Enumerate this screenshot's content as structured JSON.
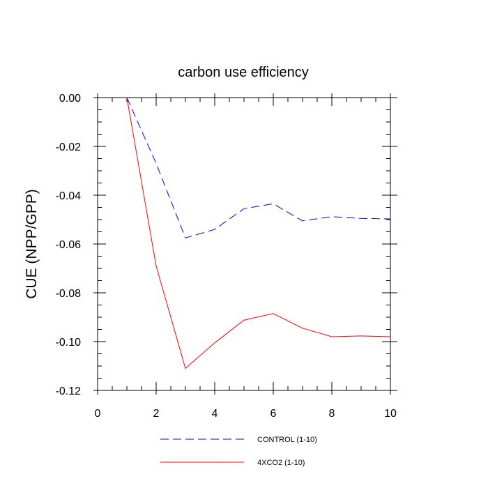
{
  "chart_data": {
    "type": "line",
    "title": "carbon use efficiency",
    "xlabel": "",
    "ylabel": "CUE  (NPP/GPP)",
    "xlim": [
      0,
      10
    ],
    "ylim": [
      -0.12,
      0.0
    ],
    "xticks": [
      0,
      2,
      4,
      6,
      8,
      10
    ],
    "xtick_labels": [
      "0",
      "2",
      "4",
      "6",
      "8",
      "10"
    ],
    "yticks": [
      0.0,
      -0.02,
      -0.04,
      -0.06,
      -0.08,
      -0.1,
      -0.12
    ],
    "ytick_labels": [
      "0.00",
      "-0.02",
      "-0.04",
      "-0.06",
      "-0.08",
      "-0.10",
      "-0.12"
    ],
    "grid": false,
    "legend_position": "bottom",
    "series": [
      {
        "name": "CONTROL (1-10)",
        "color": "#0000ff",
        "style": "dashed",
        "x": [
          1,
          2,
          3,
          4,
          5,
          6,
          7,
          8,
          9,
          10
        ],
        "y": [
          0.0,
          -0.027,
          -0.0575,
          -0.054,
          -0.0455,
          -0.0435,
          -0.0505,
          -0.0488,
          -0.0495,
          -0.0497
        ]
      },
      {
        "name": "4XCO2 (1-10)",
        "color": "#ff0000",
        "style": "solid",
        "x": [
          1,
          2,
          3,
          4,
          5,
          6,
          7,
          8,
          9,
          10
        ],
        "y": [
          0.0,
          -0.069,
          -0.111,
          -0.1005,
          -0.0912,
          -0.0885,
          -0.0945,
          -0.098,
          -0.0977,
          -0.098
        ]
      }
    ]
  }
}
